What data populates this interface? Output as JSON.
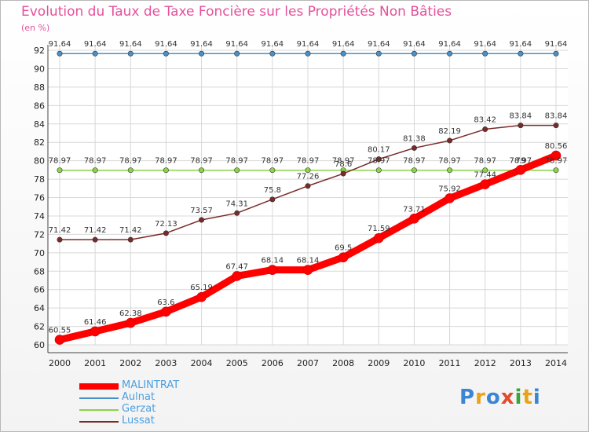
{
  "title": "Evolution du Taux de Taxe Foncière sur les Propriétés Non Bâties",
  "unit_label": "(en %)",
  "logo_text": "Proxiti",
  "chart_data": {
    "type": "line",
    "x": [
      "2000",
      "2001",
      "2002",
      "2003",
      "2004",
      "2005",
      "2006",
      "2007",
      "2008",
      "2009",
      "2010",
      "2011",
      "2012",
      "2013",
      "2014"
    ],
    "ylim": [
      60,
      92
    ],
    "yticks": [
      60,
      62,
      64,
      66,
      68,
      70,
      72,
      74,
      76,
      78,
      80,
      82,
      84,
      86,
      88,
      90,
      92
    ],
    "grid": true,
    "legend_position": "bottom-left",
    "series": [
      {
        "name": "MALINTRAT",
        "color": "#ff0000",
        "width": 9,
        "values": [
          60.55,
          61.46,
          62.38,
          63.6,
          65.19,
          67.47,
          68.14,
          68.14,
          69.5,
          71.59,
          73.71,
          75.92,
          77.44,
          79.0,
          80.56
        ],
        "labels": [
          "60.55",
          "61.46",
          "62.38",
          "63.6",
          "65.19",
          "67.47",
          "68.14",
          "68.14",
          "69.5",
          "71.59",
          "73.71",
          "75.92",
          "77.44",
          "79",
          "80.56"
        ]
      },
      {
        "name": "Aulnat",
        "color": "#4a90c8",
        "width": 1.5,
        "values": [
          91.64,
          91.64,
          91.64,
          91.64,
          91.64,
          91.64,
          91.64,
          91.64,
          91.64,
          91.64,
          91.64,
          91.64,
          91.64,
          91.64,
          91.64
        ],
        "labels": [
          "91.64",
          "91.64",
          "91.64",
          "91.64",
          "91.64",
          "91.64",
          "91.64",
          "91.64",
          "91.64",
          "91.64",
          "91.64",
          "91.64",
          "91.64",
          "91.64",
          "91.64"
        ]
      },
      {
        "name": "Gerzat",
        "color": "#8cd24a",
        "width": 1.5,
        "values": [
          78.97,
          78.97,
          78.97,
          78.97,
          78.97,
          78.97,
          78.97,
          78.97,
          78.97,
          78.97,
          78.97,
          78.97,
          78.97,
          78.97,
          78.97
        ],
        "labels": [
          "78.97",
          "78.97",
          "78.97",
          "78.97",
          "78.97",
          "78.97",
          "78.97",
          "78.97",
          "78.97",
          "78.97",
          "78.97",
          "78.97",
          "78.97",
          "78.97",
          "78.97"
        ]
      },
      {
        "name": "Lussat",
        "color": "#7a2a2a",
        "width": 1.5,
        "values": [
          71.42,
          71.42,
          71.42,
          72.13,
          73.57,
          74.31,
          75.8,
          77.26,
          78.6,
          80.17,
          81.38,
          82.19,
          83.42,
          83.84,
          83.84
        ],
        "labels": [
          "71.42",
          "71.42",
          "71.42",
          "72.13",
          "73.57",
          "74.31",
          "75.8",
          "77.26",
          "78.6",
          "80.17",
          "81.38",
          "82.19",
          "83.42",
          "83.84",
          "83.84"
        ]
      }
    ]
  }
}
